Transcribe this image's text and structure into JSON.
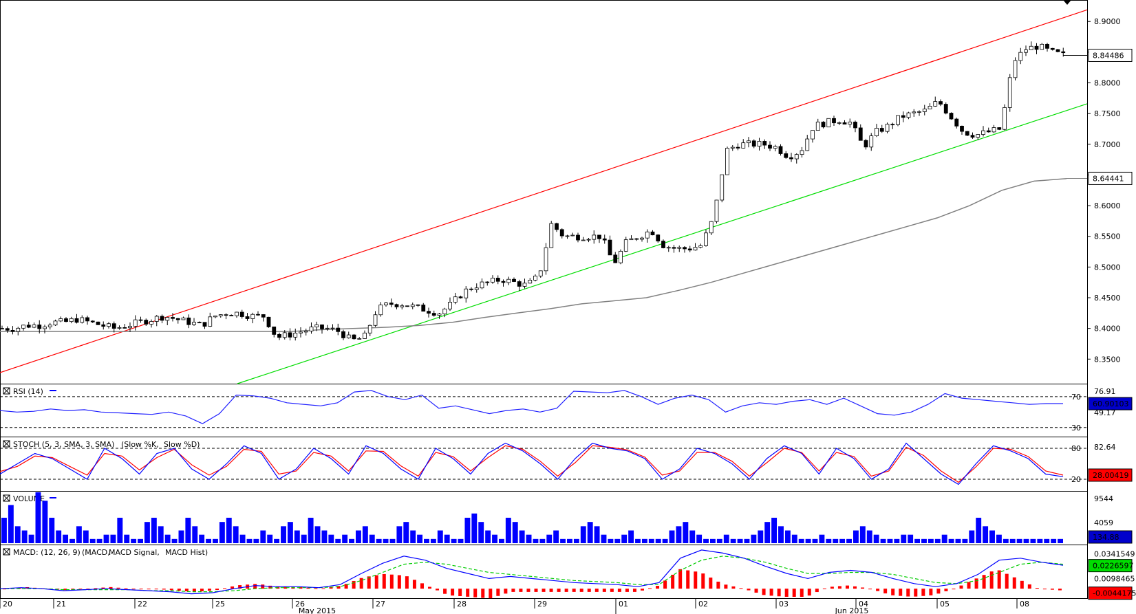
{
  "chart_data": {
    "type": "candlestick",
    "symbol_price": {
      "y_ticks": [
        "8.9000",
        "8.8500",
        "8.8000",
        "8.7500",
        "8.7000",
        "8.6500",
        "8.6000",
        "8.5500",
        "8.5000",
        "8.4500",
        "8.4000",
        "8.3500"
      ],
      "ylim": [
        8.31,
        8.935
      ],
      "last_price_label": "8.84486",
      "ma_label": "8.64441",
      "overlays": [
        "red upper channel line",
        "green lower channel line",
        "grey moving average"
      ]
    },
    "x_day_labels": [
      "20",
      "21",
      "22",
      "25",
      "26",
      "27",
      "28",
      "29",
      "01",
      "02",
      "03",
      "04",
      "05",
      "08"
    ],
    "x_month_labels": [
      "May 2015",
      "Jun 2015"
    ],
    "close_path": [
      8.4,
      8.4,
      8.405,
      8.405,
      8.41,
      8.41,
      8.415,
      8.41,
      8.405,
      8.4,
      8.405,
      8.41,
      8.415,
      8.42,
      8.415,
      8.41,
      8.405,
      8.42,
      8.425,
      8.425,
      8.42,
      8.42,
      8.385,
      8.39,
      8.395,
      8.4,
      8.4,
      8.395,
      8.38,
      8.385,
      8.43,
      8.44,
      8.44,
      8.435,
      8.43,
      8.425,
      8.44,
      8.46,
      8.47,
      8.475,
      8.48,
      8.475,
      8.47,
      8.485,
      8.57,
      8.55,
      8.55,
      8.55,
      8.55,
      8.505,
      8.54,
      8.55,
      8.56,
      8.535,
      8.53,
      8.53,
      8.535,
      8.58,
      8.69,
      8.7,
      8.7,
      8.7,
      8.695,
      8.68,
      8.69,
      8.73,
      8.735,
      8.74,
      8.735,
      8.695,
      8.72,
      8.73,
      8.745,
      8.75,
      8.755,
      8.77,
      8.745,
      8.72,
      8.715,
      8.72,
      8.725,
      8.835,
      8.855,
      8.86,
      8.85,
      8.845
    ],
    "ma_path": [
      8.395,
      8.395,
      8.395,
      8.395,
      8.395,
      8.395,
      8.395,
      8.395,
      8.395,
      8.395,
      8.398,
      8.4,
      8.402,
      8.405,
      8.41,
      8.418,
      8.425,
      8.432,
      8.44,
      8.445,
      8.45,
      8.462,
      8.475,
      8.49,
      8.505,
      8.52,
      8.535,
      8.55,
      8.565,
      8.58,
      8.6,
      8.625,
      8.64,
      8.644
    ],
    "rsi": {
      "label": "RSI (14)",
      "levels": [
        "70",
        "30"
      ],
      "scale_labels": [
        "76.91",
        "49.17"
      ],
      "current": "60.90103",
      "path": [
        52,
        50,
        51,
        54,
        52,
        53,
        50,
        49,
        48,
        47,
        50,
        45,
        35,
        48,
        72,
        71,
        68,
        62,
        60,
        58,
        62,
        76,
        78,
        70,
        66,
        72,
        55,
        58,
        53,
        48,
        52,
        54,
        50,
        55,
        77,
        76,
        75,
        78,
        70,
        60,
        68,
        72,
        66,
        50,
        58,
        62,
        60,
        64,
        66,
        60,
        68,
        58,
        48,
        46,
        50,
        60,
        74,
        68,
        66,
        64,
        62,
        60,
        61,
        61
      ]
    },
    "stoch": {
      "label": "STOCH (5, 3, SMA, 3, SMA)",
      "legend_k": "Slow %K",
      "legend_d": "Slow %D",
      "levels": [
        "80",
        "20"
      ],
      "scale_labels": [
        "82.64"
      ],
      "current": "28.00419",
      "k_path": [
        30,
        50,
        70,
        60,
        40,
        20,
        80,
        60,
        30,
        70,
        80,
        40,
        20,
        50,
        85,
        70,
        20,
        40,
        80,
        60,
        30,
        85,
        70,
        40,
        20,
        80,
        60,
        30,
        70,
        90,
        75,
        50,
        20,
        60,
        90,
        80,
        75,
        60,
        20,
        40,
        80,
        70,
        50,
        20,
        60,
        85,
        70,
        30,
        80,
        60,
        20,
        40,
        90,
        60,
        30,
        10,
        50,
        85,
        75,
        60,
        30,
        25
      ],
      "d_path": [
        35,
        45,
        65,
        62,
        45,
        28,
        70,
        65,
        38,
        62,
        78,
        48,
        28,
        45,
        78,
        74,
        30,
        36,
        72,
        65,
        36,
        75,
        74,
        46,
        26,
        72,
        64,
        36,
        62,
        85,
        78,
        55,
        26,
        52,
        85,
        82,
        77,
        63,
        28,
        36,
        72,
        72,
        55,
        26,
        52,
        80,
        72,
        36,
        72,
        64,
        26,
        36,
        82,
        66,
        36,
        14,
        44,
        80,
        78,
        64,
        36,
        28
      ]
    },
    "volume": {
      "label": "VOLUME",
      "scale_labels": [
        "9544",
        "4059"
      ],
      "current": "134.88",
      "bars": [
        6,
        9,
        4,
        3,
        2,
        12,
        10,
        6,
        3,
        2,
        1,
        4,
        3,
        1,
        1,
        2,
        2,
        6,
        2,
        1,
        1,
        5,
        6,
        4,
        2,
        1,
        3,
        6,
        4,
        2,
        1,
        1,
        5,
        6,
        4,
        2,
        1,
        1,
        3,
        2,
        1,
        4,
        5,
        3,
        2,
        6,
        4,
        3,
        2,
        1,
        2,
        1,
        3,
        4,
        2,
        1,
        1,
        1,
        4,
        5,
        3,
        2,
        1,
        1,
        3,
        2,
        1,
        1,
        6,
        7,
        5,
        3,
        2,
        1,
        6,
        5,
        3,
        2,
        1,
        1,
        2,
        3,
        1,
        1,
        1,
        4,
        5,
        4,
        2,
        1,
        1,
        2,
        3,
        1,
        1,
        1,
        1,
        1,
        3,
        4,
        5,
        3,
        2,
        1,
        1,
        1,
        2,
        1,
        1,
        1,
        2,
        3,
        5,
        6,
        4,
        3,
        2,
        1,
        1,
        1,
        2,
        1,
        1,
        1,
        1,
        3,
        4,
        3,
        2,
        1,
        1,
        1,
        2,
        2,
        1,
        1,
        1,
        1,
        2,
        1,
        1,
        1,
        3,
        6,
        4,
        3,
        2,
        1,
        1,
        1,
        1,
        1,
        1,
        1,
        1,
        1
      ]
    },
    "macd": {
      "label": "MACD: (12, 26, 9)",
      "legend": [
        "MACD",
        "MACD Signal",
        "MACD Hist"
      ],
      "scale_labels": [
        "0.0341549",
        "0.0226597",
        "0.0098465",
        "-0.0044175"
      ],
      "macd_path": [
        0,
        0.001,
        0,
        -0.002,
        -0.001,
        0,
        -0.001,
        -0.002,
        -0.003,
        -0.005,
        -0.004,
        0,
        0.003,
        0.002,
        0.002,
        0.001,
        0.004,
        0.015,
        0.025,
        0.032,
        0.028,
        0.02,
        0.015,
        0.01,
        0.012,
        0.01,
        0.008,
        0.006,
        0.005,
        0.004,
        0.002,
        0.006,
        0.03,
        0.038,
        0.035,
        0.03,
        0.022,
        0.015,
        0.01,
        0.016,
        0.018,
        0.016,
        0.01,
        0.005,
        0.002,
        0.005,
        0.014,
        0.028,
        0.03,
        0.026,
        0.023
      ],
      "signal_path": [
        0,
        0,
        0,
        -0.001,
        -0.001,
        -0.001,
        -0.001,
        -0.002,
        -0.002,
        -0.003,
        -0.003,
        -0.002,
        0,
        0.001,
        0.001,
        0.001,
        0.002,
        0.008,
        0.016,
        0.024,
        0.026,
        0.024,
        0.02,
        0.016,
        0.014,
        0.012,
        0.01,
        0.008,
        0.007,
        0.006,
        0.004,
        0.004,
        0.018,
        0.028,
        0.032,
        0.03,
        0.026,
        0.02,
        0.015,
        0.015,
        0.016,
        0.016,
        0.014,
        0.01,
        0.006,
        0.005,
        0.008,
        0.016,
        0.024,
        0.026,
        0.024
      ]
    }
  }
}
